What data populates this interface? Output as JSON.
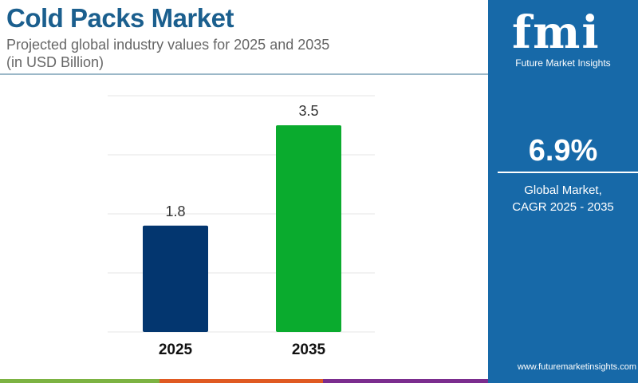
{
  "header": {
    "title": "Cold Packs Market",
    "subtitle_line1": "Projected global industry values for 2025 and 2035",
    "subtitle_line2": "(in USD Billion)"
  },
  "panel": {
    "logo_text": "fmi",
    "logo_subtitle": "Future Market Insights",
    "cagr_value": "6.9%",
    "cagr_label_line1": "Global Market,",
    "cagr_label_line2": "CAGR 2025 - 2035",
    "website": "www.futuremarketinsights.com",
    "background": "#1769a8"
  },
  "chart_data": {
    "type": "bar",
    "categories": [
      "2025",
      "2035"
    ],
    "values": [
      1.8,
      3.5
    ],
    "data_labels": [
      "1.8",
      "3.5"
    ],
    "bar_colors": [
      "#03366f",
      "#0aab2e"
    ],
    "title": "Cold Packs Market",
    "xlabel": "",
    "ylabel": "",
    "ylim": [
      0,
      4
    ],
    "grid": true
  },
  "footer_stripe_colors": [
    "#7cb342",
    "#e05a22",
    "#7b2d8e"
  ]
}
